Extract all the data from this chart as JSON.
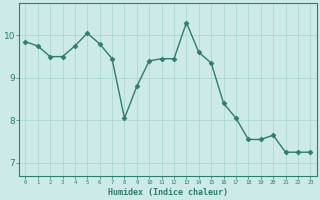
{
  "x": [
    0,
    1,
    2,
    3,
    4,
    5,
    6,
    7,
    8,
    9,
    10,
    11,
    12,
    13,
    14,
    15,
    16,
    17,
    18,
    19,
    20,
    21,
    22,
    23
  ],
  "y": [
    9.85,
    9.75,
    9.5,
    9.5,
    9.75,
    10.05,
    9.8,
    9.45,
    8.05,
    8.8,
    9.4,
    9.45,
    9.45,
    10.3,
    9.6,
    9.35,
    8.4,
    8.05,
    7.55,
    7.55,
    7.65,
    7.25,
    7.25,
    7.25
  ],
  "title": "",
  "xlabel": "Humidex (Indice chaleur)",
  "ylabel": "",
  "xlim": [
    -0.5,
    23.5
  ],
  "ylim": [
    6.7,
    10.75
  ],
  "yticks": [
    7,
    8,
    9,
    10
  ],
  "xticks": [
    0,
    1,
    2,
    3,
    4,
    5,
    6,
    7,
    8,
    9,
    10,
    11,
    12,
    13,
    14,
    15,
    16,
    17,
    18,
    19,
    20,
    21,
    22,
    23
  ],
  "line_color": "#2e7d6e",
  "marker": "D",
  "marker_size": 2.5,
  "bg_color": "#cceae7",
  "grid_color": "#b0d8d3",
  "axes_color": "#2e7d6e",
  "tick_label_color": "#2e7d6e",
  "xlabel_color": "#2e7d6e",
  "line_width": 1.0
}
